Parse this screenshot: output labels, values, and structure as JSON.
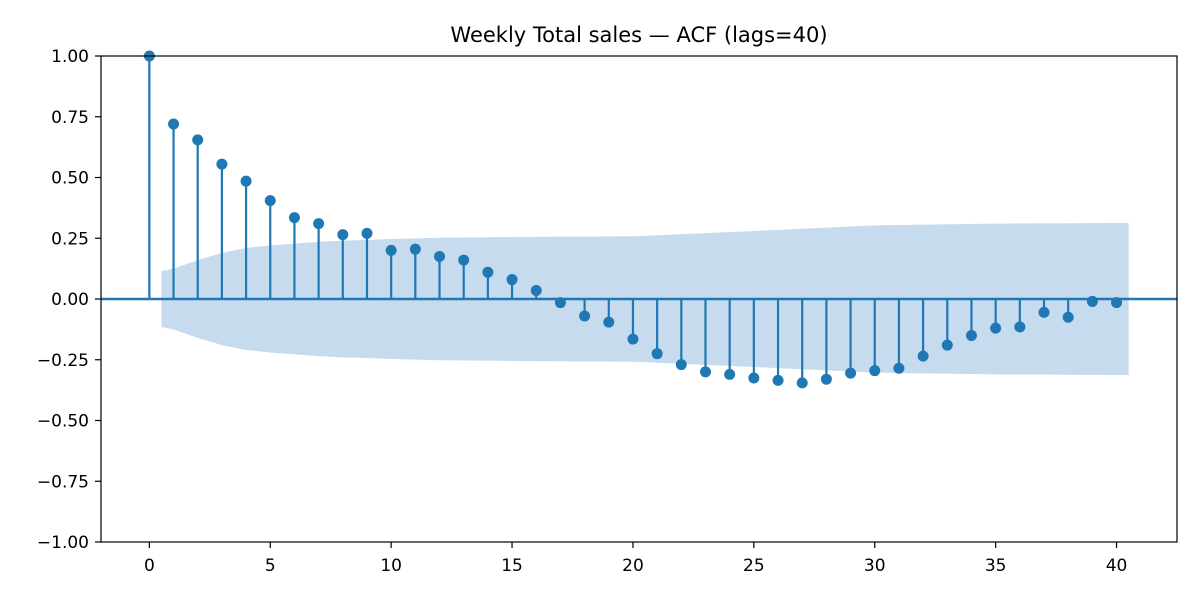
{
  "chart_data": {
    "type": "stem",
    "title": "Weekly Total sales — ACF (lags=40)",
    "xlabel": "",
    "ylabel": "",
    "xlim": [
      -2,
      42.5
    ],
    "ylim": [
      -1.0,
      1.0
    ],
    "x_ticks": [
      0,
      5,
      10,
      15,
      20,
      25,
      30,
      35,
      40
    ],
    "x_tick_labels": [
      "0",
      "5",
      "10",
      "15",
      "20",
      "25",
      "30",
      "35",
      "40"
    ],
    "y_ticks": [
      1.0,
      0.75,
      0.5,
      0.25,
      0.0,
      -0.25,
      -0.5,
      -0.75,
      -1.0
    ],
    "y_tick_labels": [
      "1.00",
      "0.75",
      "0.50",
      "0.25",
      "0.00",
      "−0.25",
      "−0.50",
      "−0.75",
      "−1.00"
    ],
    "grid": false,
    "lags": [
      0,
      1,
      2,
      3,
      4,
      5,
      6,
      7,
      8,
      9,
      10,
      11,
      12,
      13,
      14,
      15,
      16,
      17,
      18,
      19,
      20,
      21,
      22,
      23,
      24,
      25,
      26,
      27,
      28,
      29,
      30,
      31,
      32,
      33,
      34,
      35,
      36,
      37,
      38,
      39,
      40
    ],
    "acf": [
      1.0,
      0.72,
      0.655,
      0.555,
      0.485,
      0.405,
      0.335,
      0.31,
      0.265,
      0.27,
      0.2,
      0.205,
      0.175,
      0.16,
      0.11,
      0.08,
      0.035,
      -0.015,
      -0.07,
      -0.095,
      -0.165,
      -0.225,
      -0.27,
      -0.3,
      -0.31,
      -0.325,
      -0.335,
      -0.345,
      -0.33,
      -0.305,
      -0.295,
      -0.285,
      -0.235,
      -0.19,
      -0.15,
      -0.12,
      -0.115,
      -0.055,
      -0.075,
      -0.01,
      -0.015
    ],
    "confidence_band": {
      "x": [
        0.5,
        1,
        2,
        3,
        4,
        5,
        6,
        7,
        8,
        9,
        10,
        12,
        15,
        20,
        25,
        30,
        35,
        40,
        40.5
      ],
      "upper": [
        0.115,
        0.125,
        0.16,
        0.19,
        0.21,
        0.22,
        0.228,
        0.235,
        0.24,
        0.243,
        0.247,
        0.252,
        0.255,
        0.258,
        0.28,
        0.303,
        0.31,
        0.313,
        0.313
      ]
    },
    "colors": {
      "stem": "#1f77b4",
      "band": "#c6dcee",
      "zero_line": "#1f77b4",
      "axes": "#000000"
    }
  }
}
